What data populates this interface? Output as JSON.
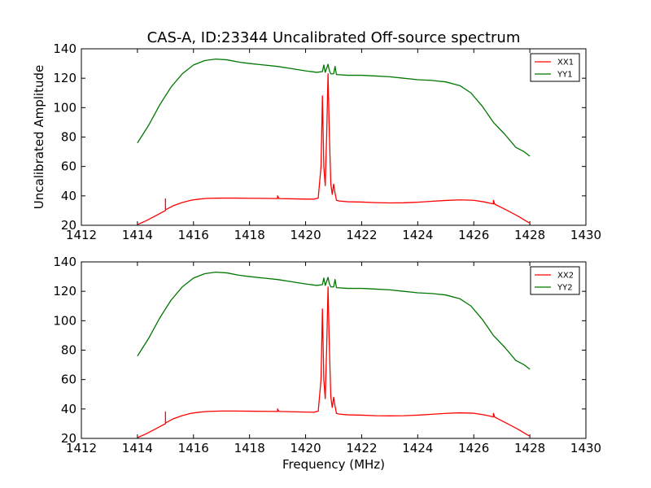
{
  "title": "CAS-A, ID:23344 Uncalibrated Off-source spectrum",
  "chart_data": [
    {
      "type": "line",
      "xlabel": "",
      "ylabel": "Uncalibrated Amplitude",
      "xlim": [
        1412,
        1430
      ],
      "ylim": [
        20,
        140
      ],
      "xticks": [
        1412,
        1414,
        1416,
        1418,
        1420,
        1422,
        1424,
        1426,
        1428,
        1430
      ],
      "yticks": [
        20,
        40,
        60,
        80,
        100,
        120,
        140
      ],
      "legend_position": "top-right",
      "series": [
        {
          "name": "XX1",
          "color": "#ff0000",
          "x": [
            1414.0,
            1414.3,
            1414.6,
            1414.9,
            1415.0,
            1415.0,
            1415.0,
            1415.05,
            1415.3,
            1415.6,
            1415.9,
            1416.2,
            1416.5,
            1417.0,
            1417.5,
            1418.0,
            1418.5,
            1419.0,
            1419.0,
            1419.05,
            1419.5,
            1420.0,
            1420.3,
            1420.45,
            1420.55,
            1420.6,
            1420.65,
            1420.7,
            1420.75,
            1420.8,
            1420.85,
            1420.9,
            1420.95,
            1421.0,
            1421.05,
            1421.1,
            1421.2,
            1421.5,
            1422.0,
            1422.5,
            1423.0,
            1423.5,
            1424.0,
            1424.5,
            1425.0,
            1425.5,
            1426.0,
            1426.4,
            1426.7,
            1426.7,
            1426.75,
            1427.0,
            1427.3,
            1427.6,
            1427.9,
            1428.0
          ],
          "y": [
            20.5,
            23.0,
            26.0,
            29.0,
            30.0,
            38.0,
            30.5,
            31.0,
            33.5,
            35.5,
            37.0,
            37.8,
            38.3,
            38.5,
            38.5,
            38.4,
            38.3,
            38.2,
            40.0,
            38.2,
            38.0,
            37.8,
            37.8,
            38.5,
            60.0,
            108.0,
            60.0,
            47.0,
            80.0,
            123.0,
            80.0,
            48.0,
            41.0,
            48.0,
            42.0,
            37.0,
            36.5,
            36.0,
            35.8,
            35.4,
            35.2,
            35.3,
            35.7,
            36.3,
            36.9,
            37.3,
            37.0,
            35.8,
            34.5,
            37.0,
            34.3,
            32.0,
            29.0,
            26.0,
            22.5,
            21.5
          ]
        },
        {
          "name": "YY1",
          "color": "#007700",
          "x": [
            1414.0,
            1414.4,
            1414.8,
            1415.2,
            1415.6,
            1416.0,
            1416.4,
            1416.8,
            1417.2,
            1417.6,
            1418.0,
            1418.5,
            1419.0,
            1419.5,
            1420.0,
            1420.4,
            1420.6,
            1420.65,
            1420.7,
            1420.8,
            1420.85,
            1420.9,
            1421.0,
            1421.05,
            1421.1,
            1421.5,
            1422.0,
            1422.5,
            1423.0,
            1423.5,
            1424.0,
            1424.5,
            1425.0,
            1425.5,
            1425.9,
            1426.3,
            1426.7,
            1427.1,
            1427.5,
            1427.8,
            1428.0
          ],
          "y": [
            76.0,
            88.0,
            102.0,
            114.0,
            123.0,
            129.0,
            132.0,
            133.0,
            132.5,
            131.0,
            130.0,
            129.0,
            128.0,
            126.5,
            125.0,
            124.0,
            124.5,
            129.0,
            124.0,
            129.5,
            125.0,
            123.0,
            123.0,
            128.0,
            122.5,
            122.0,
            122.0,
            121.5,
            121.0,
            120.0,
            119.0,
            118.5,
            117.5,
            115.0,
            110.0,
            101.0,
            90.0,
            82.0,
            73.0,
            70.0,
            67.0
          ]
        }
      ]
    },
    {
      "type": "line",
      "xlabel": "Frequency (MHz)",
      "ylabel": "",
      "xlim": [
        1412,
        1430
      ],
      "ylim": [
        20,
        140
      ],
      "xticks": [
        1412,
        1414,
        1416,
        1418,
        1420,
        1422,
        1424,
        1426,
        1428,
        1430
      ],
      "yticks": [
        20,
        40,
        60,
        80,
        100,
        120,
        140
      ],
      "legend_position": "top-right",
      "series": [
        {
          "name": "XX2",
          "color": "#ff0000",
          "x": [
            1414.0,
            1414.3,
            1414.6,
            1414.9,
            1415.0,
            1415.0,
            1415.0,
            1415.05,
            1415.3,
            1415.6,
            1415.9,
            1416.2,
            1416.5,
            1417.0,
            1417.5,
            1418.0,
            1418.5,
            1419.0,
            1419.0,
            1419.05,
            1419.5,
            1420.0,
            1420.3,
            1420.45,
            1420.55,
            1420.6,
            1420.65,
            1420.7,
            1420.75,
            1420.8,
            1420.85,
            1420.9,
            1420.95,
            1421.0,
            1421.05,
            1421.1,
            1421.2,
            1421.5,
            1422.0,
            1422.5,
            1423.0,
            1423.5,
            1424.0,
            1424.5,
            1425.0,
            1425.5,
            1426.0,
            1426.4,
            1426.7,
            1426.7,
            1426.75,
            1427.0,
            1427.3,
            1427.6,
            1427.9,
            1428.0
          ],
          "y": [
            20.5,
            23.0,
            26.0,
            29.0,
            30.0,
            38.0,
            30.5,
            31.0,
            33.5,
            35.5,
            37.0,
            37.8,
            38.3,
            38.6,
            38.6,
            38.5,
            38.4,
            38.3,
            40.0,
            38.3,
            38.1,
            37.9,
            37.8,
            38.5,
            60.0,
            108.0,
            60.0,
            47.0,
            80.0,
            123.0,
            80.0,
            48.0,
            41.0,
            48.0,
            42.0,
            37.0,
            36.5,
            36.0,
            35.8,
            35.4,
            35.3,
            35.4,
            35.8,
            36.4,
            37.0,
            37.4,
            37.1,
            35.9,
            34.6,
            37.0,
            34.4,
            32.0,
            29.0,
            26.0,
            22.5,
            21.5
          ]
        },
        {
          "name": "YY2",
          "color": "#007700",
          "x": [
            1414.0,
            1414.4,
            1414.8,
            1415.2,
            1415.6,
            1416.0,
            1416.4,
            1416.8,
            1417.2,
            1417.6,
            1418.0,
            1418.5,
            1419.0,
            1419.5,
            1420.0,
            1420.4,
            1420.6,
            1420.65,
            1420.7,
            1420.8,
            1420.85,
            1420.9,
            1421.0,
            1421.05,
            1421.1,
            1421.5,
            1422.0,
            1422.5,
            1423.0,
            1423.5,
            1424.0,
            1424.5,
            1425.0,
            1425.5,
            1425.9,
            1426.3,
            1426.7,
            1427.1,
            1427.5,
            1427.8,
            1428.0
          ],
          "y": [
            76.0,
            88.0,
            102.0,
            114.0,
            123.0,
            129.0,
            132.0,
            133.0,
            132.5,
            131.0,
            130.0,
            129.0,
            128.0,
            126.5,
            125.0,
            124.0,
            124.5,
            129.0,
            124.0,
            129.5,
            125.0,
            123.0,
            123.0,
            128.0,
            122.5,
            122.0,
            122.0,
            121.5,
            121.0,
            120.0,
            119.0,
            118.5,
            117.5,
            115.0,
            110.0,
            101.0,
            90.0,
            82.0,
            73.0,
            70.0,
            67.0
          ]
        }
      ]
    }
  ]
}
